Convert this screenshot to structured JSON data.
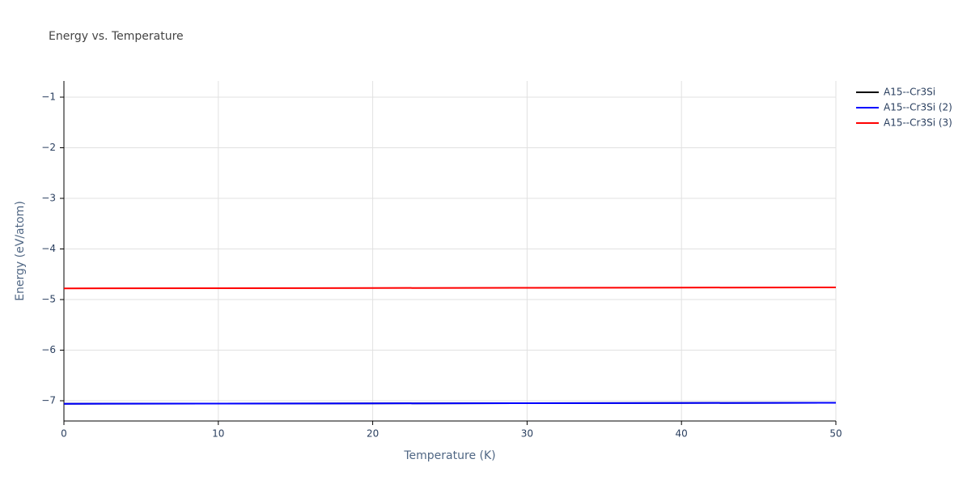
{
  "chart_data": {
    "type": "line",
    "title": "Energy vs. Temperature",
    "x_label": "Temperature (K)",
    "y_label": "Energy (eV/atom)",
    "x": [
      0,
      10,
      20,
      30,
      40,
      50
    ],
    "series": [
      {
        "name": "A15--Cr3Si",
        "color": "#000000",
        "values": [
          -7.06,
          -7.056,
          -7.052,
          -7.048,
          -7.044,
          -7.04
        ]
      },
      {
        "name": "A15--Cr3Si (2)",
        "color": "#0000ff",
        "values": [
          -7.06,
          -7.056,
          -7.052,
          -7.048,
          -7.044,
          -7.04
        ]
      },
      {
        "name": "A15--Cr3Si (3)",
        "color": "#ff0000",
        "values": [
          -4.78,
          -4.776,
          -4.772,
          -4.768,
          -4.764,
          -4.76
        ]
      }
    ],
    "xlim": [
      0,
      50
    ],
    "xticks": [
      0,
      10,
      20,
      30,
      40,
      50
    ],
    "ylim": [
      -7.4,
      -0.68
    ],
    "yticks": [
      {
        "value": -7,
        "label": "−7"
      },
      {
        "value": -6,
        "label": "−6"
      },
      {
        "value": -5,
        "label": "−5"
      },
      {
        "value": -4,
        "label": "−4"
      },
      {
        "value": -3,
        "label": "−3"
      },
      {
        "value": -2,
        "label": "−2"
      },
      {
        "value": -1,
        "label": "−1"
      }
    ],
    "grid": true,
    "legend": "right"
  }
}
